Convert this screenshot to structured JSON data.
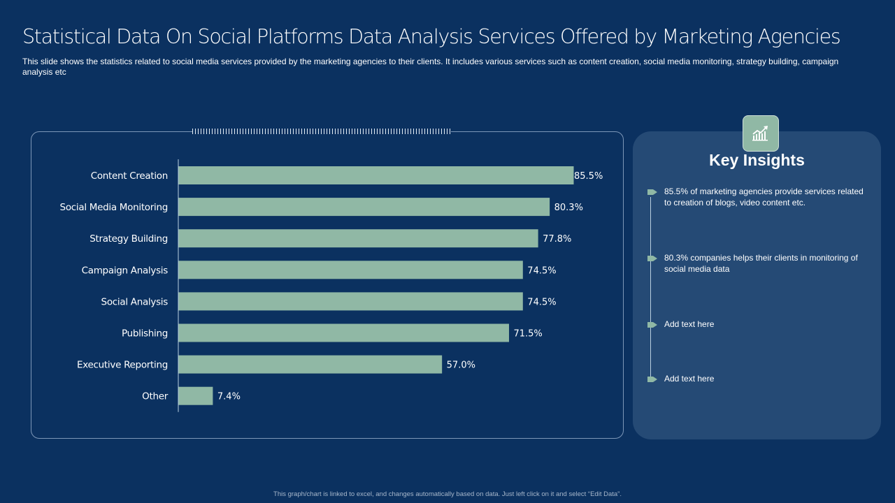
{
  "header": {
    "title": "Statistical Data On Social Platforms Data Analysis Services Offered by Marketing Agencies",
    "subtitle": "This slide shows the statistics related to social media services provided  by the marketing agencies to their clients. It includes various  services  such as content creation,  social media  monitoring,  strategy building,  campaign analysis etc"
  },
  "colors": {
    "background": "#0b3160",
    "bar": "#90b8a5",
    "panel": "#254a75",
    "text": "#ffffff"
  },
  "chart_data": {
    "type": "bar",
    "orientation": "horizontal",
    "title": "",
    "xlabel": "",
    "ylabel": "",
    "xlim": [
      0,
      100
    ],
    "grid": false,
    "legend": "none",
    "categories": [
      "Content Creation",
      "Social Media Monitoring",
      "Strategy Building",
      "Campaign Analysis",
      "Social Analysis",
      "Publishing",
      "Executive Reporting",
      "Other"
    ],
    "values": [
      85.5,
      80.3,
      77.8,
      74.5,
      74.5,
      71.5,
      57.0,
      7.4
    ],
    "labels": [
      "85.5%",
      "80.3%",
      "77.8%",
      "74.5%",
      "74.5%",
      "71.5%",
      "57.0%",
      "7.4%"
    ]
  },
  "insights": {
    "icon": "growth-chart-icon",
    "title": "Key Insights",
    "items": [
      {
        "text": "85.5% of marketing agencies provide  services related to creation of blogs, video  content etc."
      },
      {
        "text": "80.3% companies helps their clients in monitoring  of social media data"
      },
      {
        "text": "Add text here"
      },
      {
        "text": "Add text here"
      }
    ]
  },
  "footer": {
    "note": "This graph/chart is linked to excel, and changes automatically based on data. Just left click on it and select “Edit Data”."
  }
}
